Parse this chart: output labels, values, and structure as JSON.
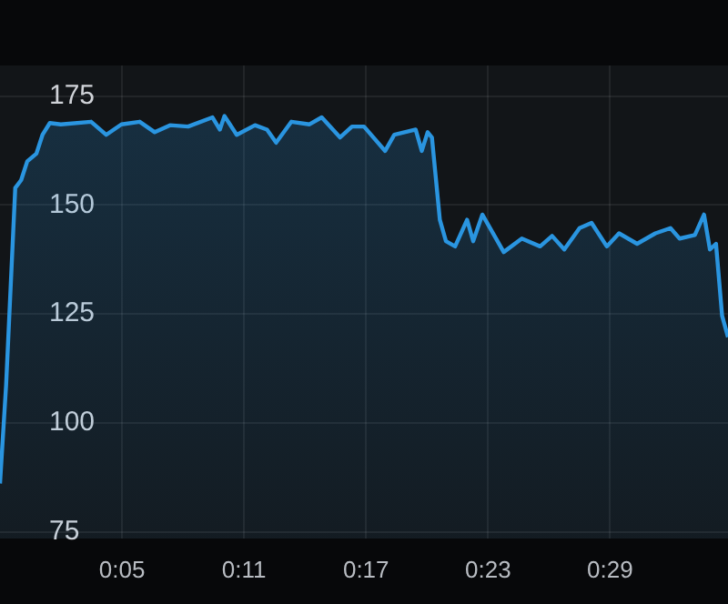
{
  "chart_data": {
    "type": "area",
    "xlim": [
      -1,
      34.8
    ],
    "xticks": [
      {
        "value": 5,
        "label": "0:05"
      },
      {
        "value": 11,
        "label": "0:11"
      },
      {
        "value": 17,
        "label": "0:17"
      },
      {
        "value": 23,
        "label": "0:23"
      },
      {
        "value": 29,
        "label": "0:29"
      }
    ],
    "ylim": [
      73.5,
      182
    ],
    "yticks": [
      75,
      100,
      125,
      150,
      175
    ],
    "grid": true,
    "marker": "none",
    "line_style": "solid",
    "series": [
      {
        "color": "#2a95e0",
        "x": [
          -1.0,
          -0.7,
          -0.25,
          0.04,
          0.34,
          0.79,
          1.09,
          1.45,
          1.99,
          3.48,
          4.22,
          4.97,
          5.87,
          6.61,
          7.36,
          8.25,
          9.45,
          9.81,
          10.04,
          10.64,
          11.54,
          12.13,
          12.58,
          13.33,
          14.22,
          14.82,
          15.72,
          16.31,
          16.9,
          17.94,
          18.39,
          19.44,
          19.74,
          20.03,
          20.24,
          20.63,
          20.93,
          21.38,
          21.97,
          22.27,
          22.72,
          23.32,
          23.77,
          24.66,
          25.56,
          26.15,
          26.75,
          27.5,
          28.09,
          28.84,
          29.44,
          30.33,
          31.23,
          31.97,
          32.42,
          33.17,
          33.62,
          33.91,
          34.21,
          34.51,
          34.8
        ],
        "values": [
          86.1,
          108.7,
          153.9,
          155.7,
          160.0,
          161.8,
          166.1,
          168.8,
          168.5,
          169.1,
          166.1,
          168.5,
          169.1,
          166.7,
          168.3,
          168.0,
          170.1,
          167.3,
          170.4,
          166.1,
          168.3,
          167.3,
          164.3,
          169.1,
          168.5,
          170.1,
          165.5,
          168.0,
          168.0,
          162.4,
          166.1,
          167.3,
          162.4,
          166.7,
          165.5,
          146.6,
          141.7,
          140.5,
          146.6,
          141.7,
          147.8,
          142.9,
          139.2,
          142.3,
          140.5,
          142.9,
          139.8,
          144.7,
          145.9,
          140.5,
          143.5,
          141.1,
          143.5,
          144.7,
          142.3,
          143.1,
          147.8,
          139.8,
          141.1,
          124.6,
          119.7
        ]
      }
    ]
  }
}
